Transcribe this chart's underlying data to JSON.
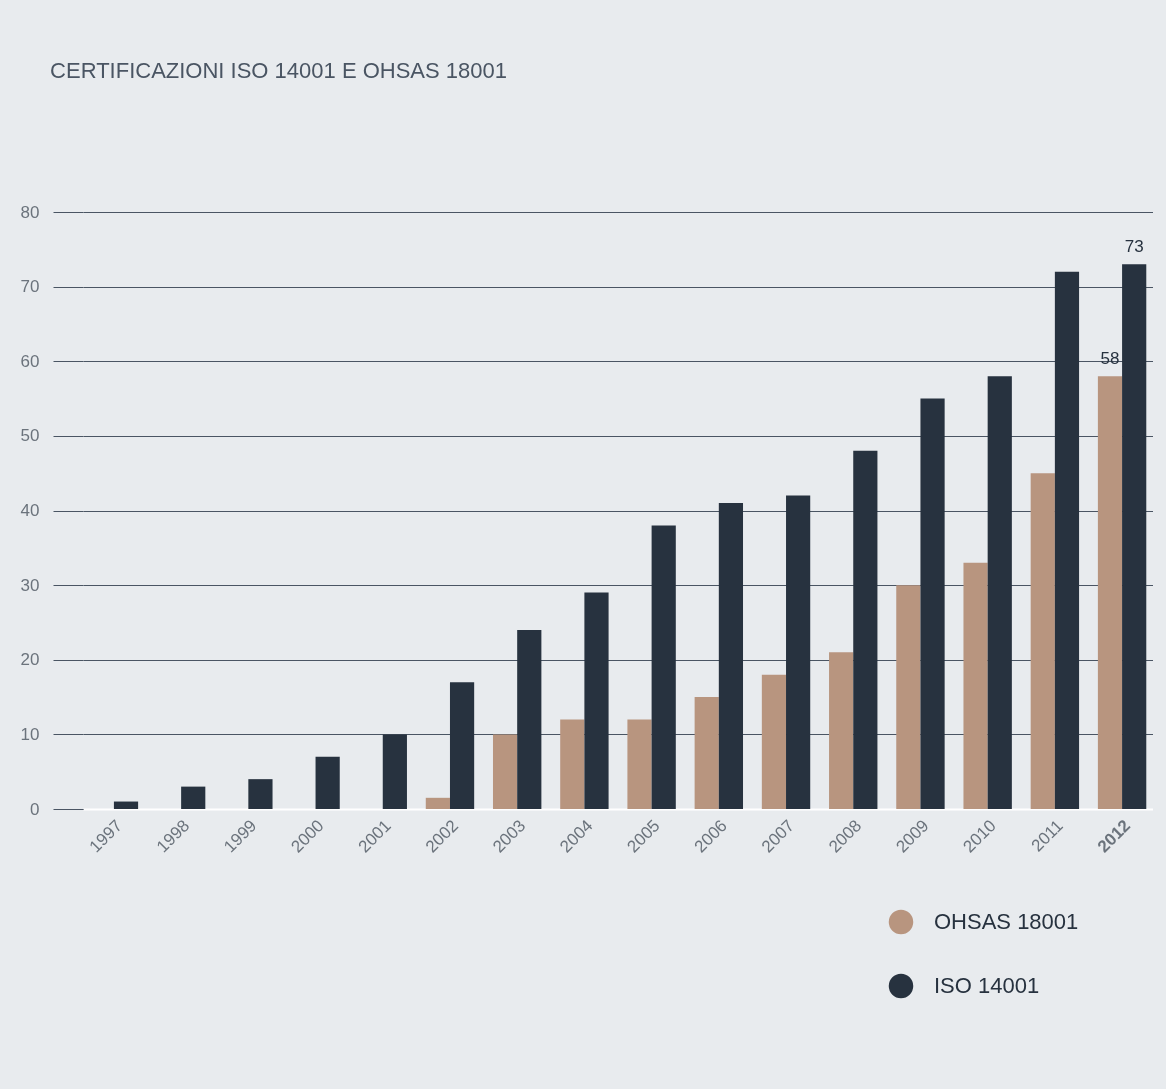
{
  "chart_data": {
    "type": "bar",
    "title": "CERTIFICAZIONI ISO 14001 E OHSAS 18001",
    "categories": [
      "1997",
      "1998",
      "1999",
      "2000",
      "2001",
      "2002",
      "2003",
      "2004",
      "2005",
      "2006",
      "2007",
      "2008",
      "2009",
      "2010",
      "2011",
      "2012"
    ],
    "series": [
      {
        "name": "OHSAS 18001",
        "color": "#b8957f",
        "values": [
          null,
          null,
          null,
          null,
          null,
          1.5,
          10,
          12,
          12,
          15,
          18,
          21,
          30,
          33,
          45,
          58
        ],
        "value_labels": [
          null,
          null,
          null,
          null,
          null,
          null,
          null,
          null,
          null,
          null,
          null,
          null,
          null,
          null,
          null,
          "58"
        ]
      },
      {
        "name": "ISO 14001",
        "color": "#27323f",
        "values": [
          1,
          3,
          4,
          7,
          10,
          17,
          24,
          29,
          38,
          41,
          42,
          48,
          55,
          58,
          72,
          73
        ],
        "value_labels": [
          null,
          null,
          null,
          null,
          null,
          null,
          null,
          null,
          null,
          null,
          null,
          null,
          null,
          null,
          null,
          "73"
        ]
      }
    ],
    "ylim": [
      0,
      80
    ],
    "yticks": [
      0,
      10,
      20,
      30,
      40,
      50,
      60,
      70,
      80
    ],
    "grid": "y",
    "legend": "bottom right"
  }
}
